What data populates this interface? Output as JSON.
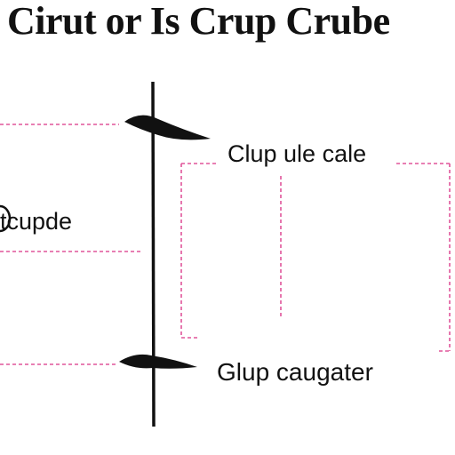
{
  "title": "Cirut or Is Crup Crube",
  "labels": {
    "left": "tcupde",
    "top_right": "Clup ule cale",
    "bottom_right": "Glup caugater"
  },
  "colors": {
    "guide": "#e0559a",
    "stroke": "#111111",
    "text": "#111111",
    "background": "#ffffff"
  }
}
